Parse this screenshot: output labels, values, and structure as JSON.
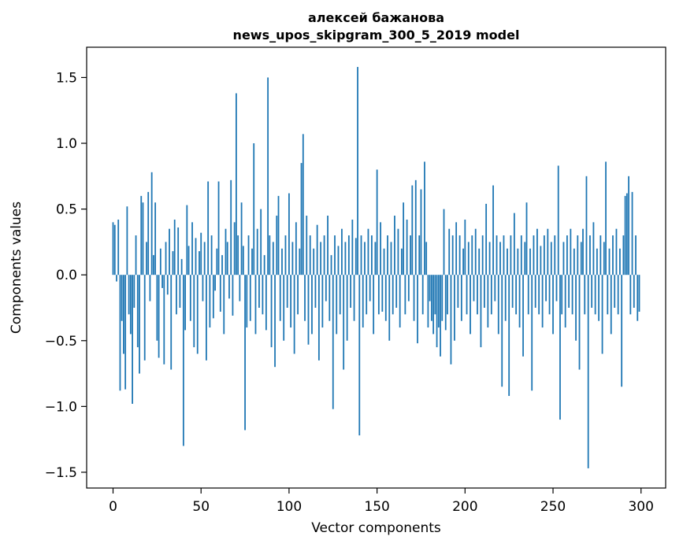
{
  "figure": {
    "background": "#ffffff"
  },
  "chart_data": {
    "type": "bar",
    "title_line1": "алексей бажанова",
    "title_line2": "news_upos_skipgram_300_5_2019 model",
    "xlabel": "Vector components",
    "ylabel": "Components values",
    "bar_color": "#1f77b4",
    "grid": false,
    "legend": "none",
    "xlim": [
      -15,
      314
    ],
    "ylim": [
      -1.62,
      1.73
    ],
    "xticks": [
      0,
      50,
      100,
      150,
      200,
      250,
      300
    ],
    "xtick_labels": [
      "0",
      "50",
      "100",
      "150",
      "200",
      "250",
      "300"
    ],
    "yticks": [
      -1.5,
      -1.0,
      -0.5,
      0.0,
      0.5,
      1.0,
      1.5
    ],
    "ytick_labels": [
      "−1.5",
      "−1.0",
      "−0.5",
      "0.0",
      "0.5",
      "1.0",
      "1.5"
    ],
    "values": [
      0.4,
      0.38,
      -0.05,
      0.42,
      -0.88,
      -0.35,
      -0.6,
      -0.87,
      0.52,
      -0.3,
      -0.45,
      -0.98,
      -0.25,
      0.3,
      -0.55,
      -0.75,
      0.6,
      0.55,
      -0.65,
      0.25,
      0.63,
      -0.2,
      0.78,
      0.15,
      0.55,
      -0.5,
      -0.63,
      0.2,
      -0.1,
      -0.68,
      0.25,
      -0.15,
      0.35,
      -0.72,
      0.18,
      0.42,
      -0.3,
      0.36,
      -0.25,
      0.12,
      -1.3,
      -0.42,
      0.53,
      0.22,
      -0.35,
      0.4,
      -0.55,
      0.28,
      -0.6,
      0.18,
      0.32,
      -0.2,
      0.25,
      -0.65,
      0.71,
      -0.4,
      0.3,
      -0.33,
      -0.12,
      0.2,
      0.71,
      -0.28,
      0.15,
      -0.45,
      0.35,
      0.25,
      -0.18,
      0.72,
      -0.31,
      0.4,
      1.38,
      0.3,
      -0.2,
      0.55,
      0.22,
      -1.18,
      -0.4,
      0.3,
      -0.35,
      0.2,
      1.0,
      -0.45,
      0.35,
      -0.25,
      0.5,
      -0.3,
      0.15,
      -0.42,
      1.5,
      0.3,
      -0.55,
      0.25,
      -0.7,
      0.45,
      0.6,
      -0.35,
      0.2,
      -0.5,
      0.3,
      -0.25,
      0.62,
      -0.4,
      0.25,
      -0.6,
      0.4,
      -0.3,
      0.2,
      0.85,
      1.07,
      -0.35,
      0.45,
      -0.53,
      0.3,
      -0.45,
      0.2,
      -0.25,
      0.38,
      -0.65,
      0.25,
      -0.4,
      0.3,
      -0.2,
      0.45,
      -0.35,
      0.15,
      -1.02,
      0.3,
      -0.45,
      0.22,
      -0.3,
      0.35,
      -0.72,
      0.25,
      -0.5,
      0.3,
      -0.25,
      0.42,
      -0.35,
      0.28,
      1.58,
      -1.22,
      0.3,
      -0.4,
      0.25,
      -0.3,
      0.35,
      -0.2,
      0.3,
      -0.45,
      0.25,
      0.8,
      -0.3,
      0.4,
      -0.28,
      0.2,
      -0.35,
      0.3,
      -0.5,
      0.25,
      -0.3,
      0.45,
      -0.25,
      0.35,
      -0.4,
      0.2,
      0.55,
      -0.3,
      0.42,
      -0.2,
      0.3,
      0.68,
      -0.35,
      0.72,
      -0.52,
      0.3,
      0.65,
      -0.3,
      0.86,
      0.25,
      -0.4,
      -0.2,
      -0.35,
      -0.45,
      -0.3,
      -0.55,
      -0.4,
      -0.62,
      -0.35,
      0.5,
      -0.42,
      -0.3,
      0.35,
      -0.68,
      0.3,
      -0.5,
      0.4,
      -0.25,
      0.3,
      -0.35,
      0.2,
      0.42,
      -0.3,
      0.25,
      -0.45,
      0.3,
      -0.2,
      0.35,
      -0.3,
      0.2,
      -0.55,
      0.3,
      -0.25,
      0.54,
      -0.4,
      0.25,
      -0.3,
      0.68,
      -0.2,
      0.3,
      -0.45,
      0.25,
      -0.85,
      0.3,
      -0.35,
      0.2,
      -0.92,
      0.3,
      -0.25,
      0.47,
      -0.3,
      0.2,
      -0.4,
      0.3,
      -0.62,
      0.25,
      0.55,
      -0.3,
      0.2,
      -0.88,
      0.3,
      -0.25,
      0.35,
      -0.3,
      0.22,
      -0.4,
      0.3,
      -0.2,
      0.35,
      -0.3,
      0.25,
      -0.45,
      0.3,
      -0.2,
      0.83,
      -1.1,
      -0.3,
      0.25,
      -0.4,
      0.3,
      -0.25,
      0.35,
      -0.3,
      0.2,
      -0.5,
      0.3,
      -0.72,
      0.25,
      0.35,
      -0.3,
      0.75,
      -1.47,
      0.3,
      -0.25,
      0.4,
      -0.3,
      0.2,
      -0.35,
      0.3,
      -0.6,
      0.25,
      0.86,
      -0.3,
      0.2,
      -0.45,
      0.3,
      -0.25,
      0.35,
      -0.3,
      0.2,
      -0.85,
      0.3,
      0.6,
      0.62,
      0.75,
      -0.3,
      0.63,
      -0.25,
      0.3,
      -0.35,
      -0.28
    ]
  }
}
